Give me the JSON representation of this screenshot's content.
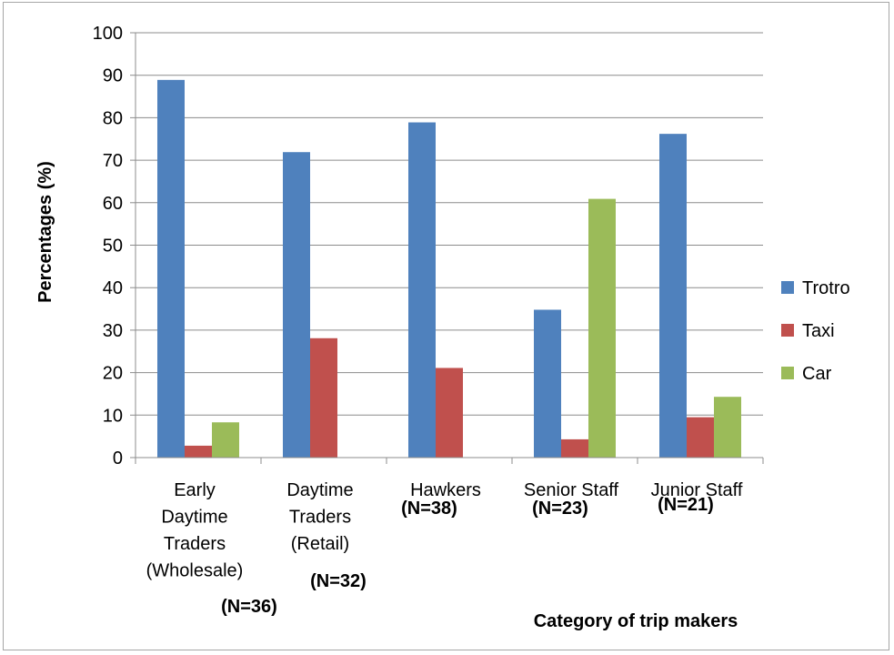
{
  "chart_data": {
    "type": "bar",
    "categories": [
      {
        "lines": [
          "Early",
          "Daytime",
          "Traders",
          "(Wholesale)"
        ],
        "n": "(N=36)"
      },
      {
        "lines": [
          "Daytime",
          "Traders",
          "(Retail)"
        ],
        "n": "(N=32)"
      },
      {
        "lines": [
          "Hawkers"
        ],
        "n": "(N=38)"
      },
      {
        "lines": [
          "Senior Staff"
        ],
        "n": "(N=23)"
      },
      {
        "lines": [
          "Junior Staff"
        ],
        "n": "(N=21)"
      }
    ],
    "series": [
      {
        "name": "Trotro",
        "color": "#4f81bd",
        "values": [
          88.9,
          71.9,
          78.9,
          34.8,
          76.2
        ]
      },
      {
        "name": "Taxi",
        "color": "#c0504d",
        "values": [
          2.8,
          28.1,
          21.1,
          4.3,
          9.5
        ]
      },
      {
        "name": "Car",
        "color": "#9bbb59",
        "values": [
          8.3,
          0,
          0,
          60.9,
          14.3
        ]
      }
    ],
    "ylabel": "Percentages (%)",
    "xlabel": "Category of trip makers",
    "ylim": [
      0,
      100
    ],
    "ytick_step": 10,
    "grid": true,
    "legend_position": "right"
  }
}
